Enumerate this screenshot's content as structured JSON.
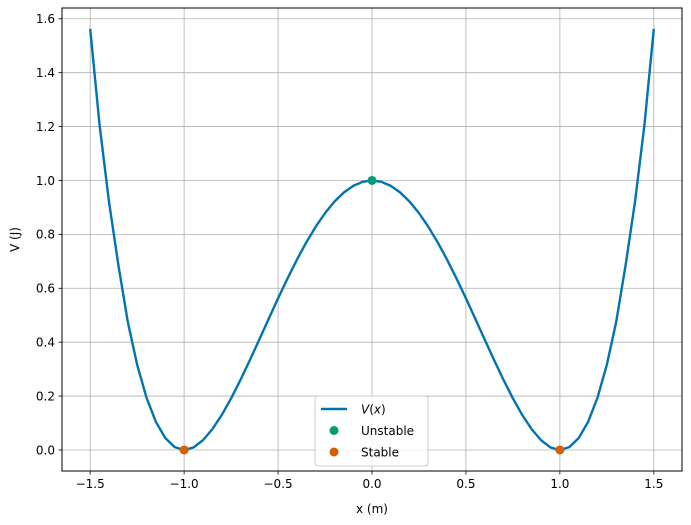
{
  "chart_data": {
    "type": "line",
    "title": "",
    "xlabel": "x (m)",
    "ylabel": "V (J)",
    "xlim": [
      -1.65,
      1.65
    ],
    "ylim": [
      -0.078,
      1.64
    ],
    "xticks": [
      -1.5,
      -1.0,
      -0.5,
      0.0,
      0.5,
      1.0,
      1.5
    ],
    "xtick_labels": [
      "−1.5",
      "−1.0",
      "−0.5",
      "0.0",
      "0.5",
      "1.0",
      "1.5"
    ],
    "yticks": [
      0.0,
      0.2,
      0.4,
      0.6,
      0.8,
      1.0,
      1.2,
      1.4,
      1.6
    ],
    "ytick_labels": [
      "0.0",
      "0.2",
      "0.4",
      "0.6",
      "0.8",
      "1.0",
      "1.2",
      "1.4",
      "1.6"
    ],
    "grid": true,
    "legend_position": "lower-center",
    "series": [
      {
        "name": "V(x)",
        "name_parts": [
          "V",
          "(",
          "x",
          ")"
        ],
        "kind": "line",
        "color": "#0173b2",
        "x": [
          -1.5,
          -1.45,
          -1.4,
          -1.35,
          -1.3,
          -1.25,
          -1.2,
          -1.15,
          -1.1,
          -1.05,
          -1.0,
          -0.95,
          -0.9,
          -0.85,
          -0.8,
          -0.75,
          -0.7,
          -0.65,
          -0.6,
          -0.55,
          -0.5,
          -0.45,
          -0.4,
          -0.35,
          -0.3,
          -0.25,
          -0.2,
          -0.15,
          -0.1,
          -0.05,
          0.0,
          0.05,
          0.1,
          0.15,
          0.2,
          0.25,
          0.3,
          0.35,
          0.4,
          0.45,
          0.5,
          0.55,
          0.6,
          0.65,
          0.7,
          0.75,
          0.8,
          0.85,
          0.9,
          0.95,
          1.0,
          1.05,
          1.1,
          1.15,
          1.2,
          1.25,
          1.3,
          1.35,
          1.4,
          1.45,
          1.5
        ],
        "y": [
          1.5625,
          1.2056,
          0.9216,
          0.6868,
          0.4761,
          0.3164,
          0.1936,
          0.104,
          0.0441,
          0.0105,
          0.0,
          0.0095,
          0.0361,
          0.077,
          0.1296,
          0.1914,
          0.2601,
          0.3335,
          0.4096,
          0.4865,
          0.5625,
          0.636,
          0.7056,
          0.77,
          0.8281,
          0.8789,
          0.9216,
          0.9555,
          0.9801,
          0.995,
          1.0,
          0.995,
          0.9801,
          0.9555,
          0.9216,
          0.8789,
          0.8281,
          0.77,
          0.7056,
          0.636,
          0.5625,
          0.4865,
          0.4096,
          0.3335,
          0.2601,
          0.1914,
          0.1296,
          0.077,
          0.0361,
          0.0095,
          0.0,
          0.0105,
          0.0441,
          0.104,
          0.1936,
          0.3164,
          0.4761,
          0.6868,
          0.9216,
          1.2056,
          1.5625
        ]
      },
      {
        "name": "Unstable",
        "kind": "points",
        "color": "#029e73",
        "x": [
          0.0
        ],
        "y": [
          1.0
        ]
      },
      {
        "name": "Stable",
        "kind": "points",
        "color": "#d55e00",
        "x": [
          -1.0,
          1.0
        ],
        "y": [
          0.0,
          0.0
        ]
      }
    ]
  }
}
